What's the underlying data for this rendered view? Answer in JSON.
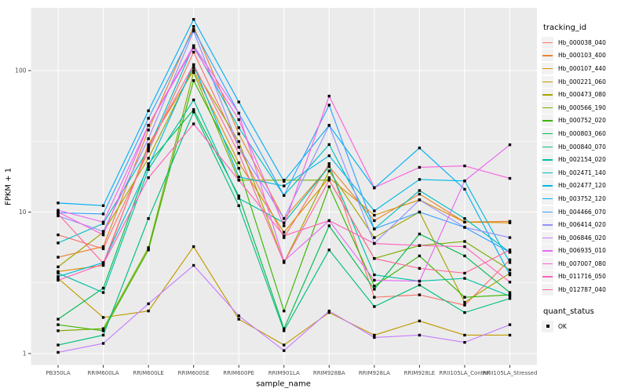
{
  "chart_data": {
    "type": "line",
    "title": "",
    "xlabel": "sample_name",
    "ylabel": "FPKM + 1",
    "y_scale": "log10",
    "ylim": [
      1,
      277
    ],
    "y_ticks": [
      "1",
      "10",
      "100"
    ],
    "y_minor_breaks": [
      3.1623,
      31.623
    ],
    "grid": "on",
    "legend_position": "right",
    "panel_bg": "#EBEBEB",
    "grid_color": "#FFFFFF",
    "tick_color": "#333333",
    "tick_label_color": "#4D4D4D",
    "point_color": "#000000",
    "point_shape": "square",
    "legend_key_bg": "#F2F2F2",
    "legend_title": "tracking_id",
    "categories": [
      "PB350LA",
      "RRIM600LA",
      "RRIM600LE",
      "RRIM600SE",
      "RRIM600PE",
      "RRIM901LA",
      "RRIM928BA",
      "RRIM928LA",
      "RRIM928LE",
      "RRII105LA_Control",
      "RRII105LA_Stressed"
    ],
    "series": [
      {
        "id": "Hb_000038_040",
        "color": "#F8766D",
        "values": [
          6.9,
          5.5,
          27,
          135,
          28.7,
          6.6,
          22,
          2.5,
          2.6,
          2.2,
          4.6
        ]
      },
      {
        "id": "Hb_000103_400",
        "color": "#EA8331",
        "values": [
          4.8,
          5.7,
          38,
          205,
          35.7,
          9.0,
          21,
          8.7,
          13.4,
          8.5,
          8.6
        ]
      },
      {
        "id": "Hb_000107_440",
        "color": "#D89000",
        "values": [
          3.8,
          4.2,
          30,
          100,
          22.3,
          7.2,
          17.5,
          9.5,
          12.2,
          8.5,
          8.4
        ]
      },
      {
        "id": "Hb_000221_060",
        "color": "#C09B00",
        "values": [
          3.4,
          1.8,
          2.0,
          5.7,
          1.75,
          1.15,
          1.95,
          1.35,
          1.7,
          1.35,
          1.35
        ]
      },
      {
        "id": "Hb_000473_080",
        "color": "#A3A500",
        "values": [
          4.1,
          7.2,
          24,
          105,
          31.5,
          4.4,
          19.5,
          6.6,
          10.0,
          2.3,
          3.7
        ]
      },
      {
        "id": "Hb_000566_190",
        "color": "#7CAE00",
        "values": [
          1.45,
          1.5,
          5.6,
          97,
          16.8,
          16.8,
          16.8,
          4.7,
          5.8,
          6.2,
          3.9
        ]
      },
      {
        "id": "Hb_000752_020",
        "color": "#39B600",
        "values": [
          1.6,
          1.45,
          5.4,
          85,
          20.4,
          2.0,
          15.1,
          3.0,
          4.9,
          2.5,
          2.6
        ]
      },
      {
        "id": "Hb_000803_060",
        "color": "#00BB4E",
        "values": [
          1.75,
          2.9,
          22,
          53,
          13.0,
          1.5,
          8.0,
          2.85,
          7.0,
          4.9,
          2.7
        ]
      },
      {
        "id": "Hb_000840_070",
        "color": "#00BF7D",
        "values": [
          1.15,
          1.35,
          9.0,
          51,
          11.1,
          1.45,
          5.4,
          2.15,
          3.05,
          1.95,
          2.45
        ]
      },
      {
        "id": "Hb_002154_020",
        "color": "#00C1A3",
        "values": [
          3.7,
          2.7,
          20,
          62,
          12.5,
          8.4,
          21,
          3.6,
          3.25,
          3.4,
          2.55
        ]
      },
      {
        "id": "Hb_002471_140",
        "color": "#00BFC4",
        "values": [
          6.05,
          8.3,
          28,
          150,
          39.5,
          13.1,
          30,
          7.6,
          14.2,
          9.0,
          5.2
        ]
      },
      {
        "id": "Hb_002477_120",
        "color": "#00BAE0",
        "values": [
          3.5,
          4.4,
          21,
          110,
          17.7,
          15.3,
          25,
          10.2,
          17.0,
          16.6,
          4.4
        ]
      },
      {
        "id": "Hb_003752_120",
        "color": "#00B0F6",
        "values": [
          11.6,
          11.1,
          52,
          230,
          60,
          16.5,
          41,
          14.8,
          28.4,
          14.5,
          3.6
        ]
      },
      {
        "id": "Hb_004466_070",
        "color": "#35A2FF",
        "values": [
          9.9,
          9.7,
          46,
          195,
          50,
          13.1,
          57,
          7.6,
          10.0,
          7.8,
          5.2
        ]
      },
      {
        "id": "Hb_006414_020",
        "color": "#9590FF",
        "values": [
          9.4,
          7.3,
          33,
          190,
          28.7,
          9.0,
          41,
          6.0,
          12.2,
          7.8,
          6.6
        ]
      },
      {
        "id": "Hb_006846_020",
        "color": "#C77CFF",
        "values": [
          1.02,
          1.18,
          2.25,
          4.2,
          1.85,
          1.05,
          2.0,
          1.3,
          1.35,
          1.2,
          1.6
        ]
      },
      {
        "id": "Hb_006935_010",
        "color": "#E76BF3",
        "values": [
          10.3,
          8.5,
          41,
          150,
          50,
          4.5,
          8.7,
          3.3,
          3.25,
          16.6,
          29.9
        ]
      },
      {
        "id": "Hb_007007_080",
        "color": "#FA62DB",
        "values": [
          10.0,
          6.9,
          41,
          145,
          45,
          8.0,
          66,
          14.9,
          20.7,
          21.2,
          17.3
        ]
      },
      {
        "id": "Hb_011716_050",
        "color": "#FF62BC",
        "values": [
          3.3,
          4.3,
          17.5,
          42,
          16.8,
          6.8,
          8.7,
          6.0,
          5.8,
          5.7,
          3.2
        ]
      },
      {
        "id": "Hb_012787_040",
        "color": "#FF6A98",
        "values": [
          9.7,
          4.35,
          29,
          110,
          26,
          4.4,
          16.8,
          4.7,
          4.0,
          3.7,
          5.4
        ]
      }
    ],
    "quant_legend": {
      "title": "quant_status",
      "entries": [
        {
          "label": "OK",
          "shape": "square",
          "color": "#000000"
        }
      ]
    }
  }
}
